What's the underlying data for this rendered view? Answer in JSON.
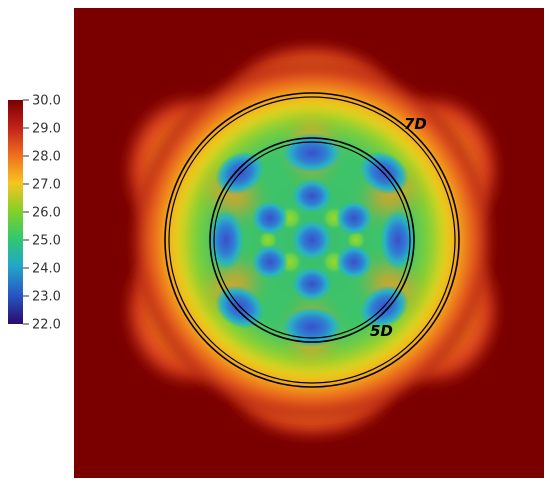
{
  "colorbar": {
    "ticks": [
      "30.0",
      "29.0",
      "28.0",
      "27.0",
      "26.0",
      "25.0",
      "24.0",
      "23.0",
      "22.0"
    ],
    "range": [
      22.0,
      30.0
    ],
    "colormap": [
      "#2a0a6b",
      "#1f4fbf",
      "#1bbdd6",
      "#2fd06a",
      "#8ad21c",
      "#f4d21a",
      "#f29a1a",
      "#d7321c",
      "#7a0000"
    ]
  },
  "rings": {
    "outer_label": "7D",
    "inner_label": "5D"
  },
  "colors": {
    "background_field": "#7a0000",
    "ring_stroke": "#000000"
  }
}
